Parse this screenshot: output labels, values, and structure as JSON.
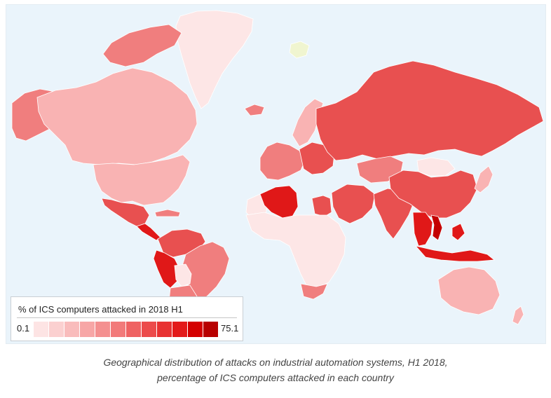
{
  "legend": {
    "title": "% of ICS computers attacked in 2018 H1",
    "min_label": "0.1",
    "max_label": "75.1",
    "scale_colors": [
      "#fde4e4",
      "#fbd0d0",
      "#f9bcbc",
      "#f7a6a6",
      "#f49090",
      "#f27a7a",
      "#ef6262",
      "#ec4b4b",
      "#e83232",
      "#e31a1a",
      "#d40000",
      "#b80000"
    ]
  },
  "caption": {
    "line1": "Geographical distribution of attacks on industrial automation systems, H1 2018,",
    "line2": "percentage of ICS computers attacked in each country"
  },
  "colors": {
    "ocean": "#eaf4fb",
    "no_data": "#f0f5d0",
    "very_low": "#fde6e6",
    "low": "#f9b3b3",
    "medium": "#f07e7e",
    "high": "#e85050",
    "very_high": "#e01818",
    "highest": "#c40000"
  },
  "regions": [
    {
      "name": "Alaska",
      "level": "medium"
    },
    {
      "name": "Canada",
      "level": "low"
    },
    {
      "name": "Greenland",
      "level": "very_low"
    },
    {
      "name": "United States",
      "level": "low"
    },
    {
      "name": "Mexico",
      "level": "high"
    },
    {
      "name": "Central America",
      "level": "very_high"
    },
    {
      "name": "Caribbean",
      "level": "medium"
    },
    {
      "name": "Venezuela-Colombia",
      "level": "high"
    },
    {
      "name": "Peru",
      "level": "very_high"
    },
    {
      "name": "Brazil",
      "level": "medium"
    },
    {
      "name": "Bolivia",
      "level": "very_low"
    },
    {
      "name": "Argentina-Chile",
      "level": "medium"
    },
    {
      "name": "Iceland",
      "level": "medium"
    },
    {
      "name": "Scandinavia",
      "level": "low"
    },
    {
      "name": "Western Europe",
      "level": "medium"
    },
    {
      "name": "Eastern Europe",
      "level": "high"
    },
    {
      "name": "Russia",
      "level": "high"
    },
    {
      "name": "North Africa west",
      "level": "very_low"
    },
    {
      "name": "Algeria",
      "level": "very_high"
    },
    {
      "name": "Egypt",
      "level": "high"
    },
    {
      "name": "Sub-Saharan Africa",
      "level": "very_low"
    },
    {
      "name": "South Africa",
      "level": "medium"
    },
    {
      "name": "Middle East",
      "level": "high"
    },
    {
      "name": "Central Asia",
      "level": "medium"
    },
    {
      "name": "India",
      "level": "high"
    },
    {
      "name": "China",
      "level": "high"
    },
    {
      "name": "Mongolia",
      "level": "very_low"
    },
    {
      "name": "Southeast Asia",
      "level": "very_high"
    },
    {
      "name": "Vietnam",
      "level": "highest"
    },
    {
      "name": "Japan",
      "level": "low"
    },
    {
      "name": "Indonesia",
      "level": "very_high"
    },
    {
      "name": "Australia",
      "level": "low"
    },
    {
      "name": "New Zealand",
      "level": "low"
    },
    {
      "name": "Svalbard",
      "level": "no_data"
    },
    {
      "name": "Arctic islands",
      "level": "medium"
    }
  ]
}
